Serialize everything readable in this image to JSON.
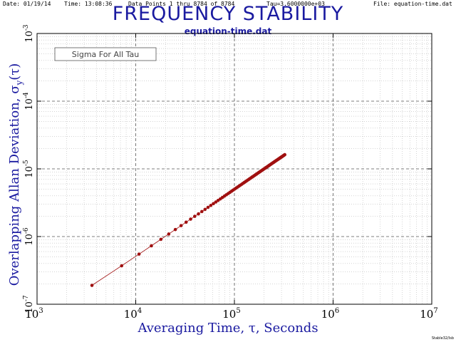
{
  "header": {
    "date": "Date: 01/19/14",
    "time": "Time: 13:08:36",
    "data_points": "Data Points 1 thru 8784 of 8784",
    "tau": "Tau=3.6000000e+03",
    "file": "File: equation-time.dat"
  },
  "title": "FREQUENCY STABILITY",
  "subtitle": "equation-time.dat",
  "legend_box": "Sigma For All Tau",
  "ylabel": {
    "main": "Overlapping Allan Deviation, σ",
    "sub": "y",
    "tail": "(τ)"
  },
  "xlabel": "Averaging Time, τ, Seconds",
  "credit": "Stable32/Isb",
  "colors": {
    "title": "#1a1aa0",
    "data": "#a01010",
    "grid": "#555555"
  },
  "chart_data": {
    "type": "scatter",
    "title": "FREQUENCY STABILITY",
    "subtitle": "equation-time.dat",
    "xlabel": "Averaging Time, τ, Seconds",
    "ylabel": "Overlapping Allan Deviation, σy(τ)",
    "x_scale": "log",
    "y_scale": "log",
    "xlim": [
      1000,
      10000000
    ],
    "ylim": [
      1e-07,
      0.001
    ],
    "x_ticks": [
      {
        "value": 1000,
        "base": "10",
        "exp": "3"
      },
      {
        "value": 10000,
        "base": "10",
        "exp": "4"
      },
      {
        "value": 100000,
        "base": "10",
        "exp": "5"
      },
      {
        "value": 1000000,
        "base": "10",
        "exp": "6"
      },
      {
        "value": 10000000,
        "base": "10",
        "exp": "7"
      }
    ],
    "y_ticks": [
      {
        "value": 1e-07,
        "base": "10",
        "exp": "-7"
      },
      {
        "value": 1e-06,
        "base": "10",
        "exp": "-6"
      },
      {
        "value": 1e-05,
        "base": "10",
        "exp": "-5"
      },
      {
        "value": 0.0001,
        "base": "10",
        "exp": "-4"
      },
      {
        "value": 0.001,
        "base": "10",
        "exp": "-3"
      }
    ],
    "grid": true,
    "legend": "Sigma For All Tau",
    "legend_position": "top-left",
    "series": [
      {
        "tau_start": 3600,
        "tau_step": 3600,
        "points": 90,
        "values": [
          1.9e-07,
          3.7e-07,
          5.5e-07,
          7.3e-07,
          9.1e-07,
          1.09e-06,
          1.27e-06,
          1.45e-06,
          1.63e-06,
          1.81e-06,
          1.99e-06,
          2.16e-06,
          2.34e-06,
          2.52e-06,
          2.7e-06,
          2.88e-06,
          3.06e-06,
          3.24e-06,
          3.42e-06,
          3.6e-06,
          3.78e-06,
          3.96e-06,
          4.14e-06,
          4.32e-06,
          4.5e-06,
          4.68e-06,
          4.86e-06,
          5.04e-06,
          5.22e-06,
          5.4e-06,
          5.58e-06,
          5.76e-06,
          5.94e-06,
          6.12e-06,
          6.3e-06,
          6.48e-06,
          6.66e-06,
          6.84e-06,
          7.02e-06,
          7.2e-06,
          7.38e-06,
          7.56e-06,
          7.74e-06,
          7.92e-06,
          8.1e-06,
          8.28e-06,
          8.46e-06,
          8.64e-06,
          8.82e-06,
          9e-06,
          9.18e-06,
          9.36e-06,
          9.54e-06,
          9.72e-06,
          9.9e-06,
          1.008e-05,
          1.026e-05,
          1.044e-05,
          1.062e-05,
          1.08e-05,
          1.098e-05,
          1.116e-05,
          1.134e-05,
          1.152e-05,
          1.17e-05,
          1.188e-05,
          1.206e-05,
          1.224e-05,
          1.242e-05,
          1.26e-05,
          1.278e-05,
          1.296e-05,
          1.314e-05,
          1.332e-05,
          1.35e-05,
          1.368e-05,
          1.386e-05,
          1.404e-05,
          1.422e-05,
          1.44e-05,
          1.458e-05,
          1.476e-05,
          1.494e-05,
          1.512e-05,
          1.53e-05,
          1.548e-05,
          1.566e-05,
          1.584e-05,
          1.602e-05,
          1.62e-05
        ]
      }
    ]
  }
}
